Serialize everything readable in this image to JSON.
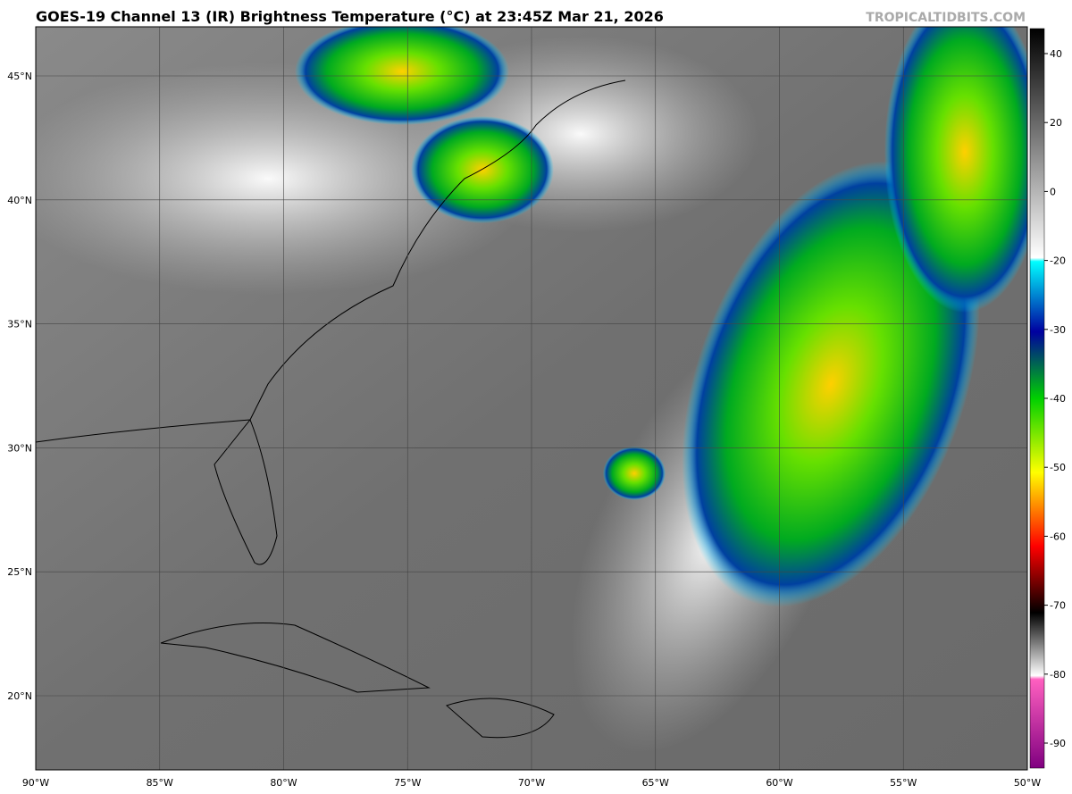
{
  "header": {
    "title": "GOES-19 Channel 13 (IR) Brightness Temperature (°C) at 23:45Z Mar 21, 2026",
    "credit": "TROPICALTIDBITS.COM"
  },
  "map": {
    "lat_labels": [
      "45°N",
      "40°N",
      "35°N",
      "30°N",
      "25°N",
      "20°N"
    ],
    "lon_labels": [
      "90°W",
      "85°W",
      "80°W",
      "75°W",
      "70°W",
      "65°W",
      "60°W",
      "55°W",
      "50°W"
    ]
  },
  "colorbar": {
    "ticks": [
      40,
      20,
      0,
      -20,
      -30,
      -40,
      -50,
      -60,
      -70,
      -80,
      -90
    ]
  }
}
